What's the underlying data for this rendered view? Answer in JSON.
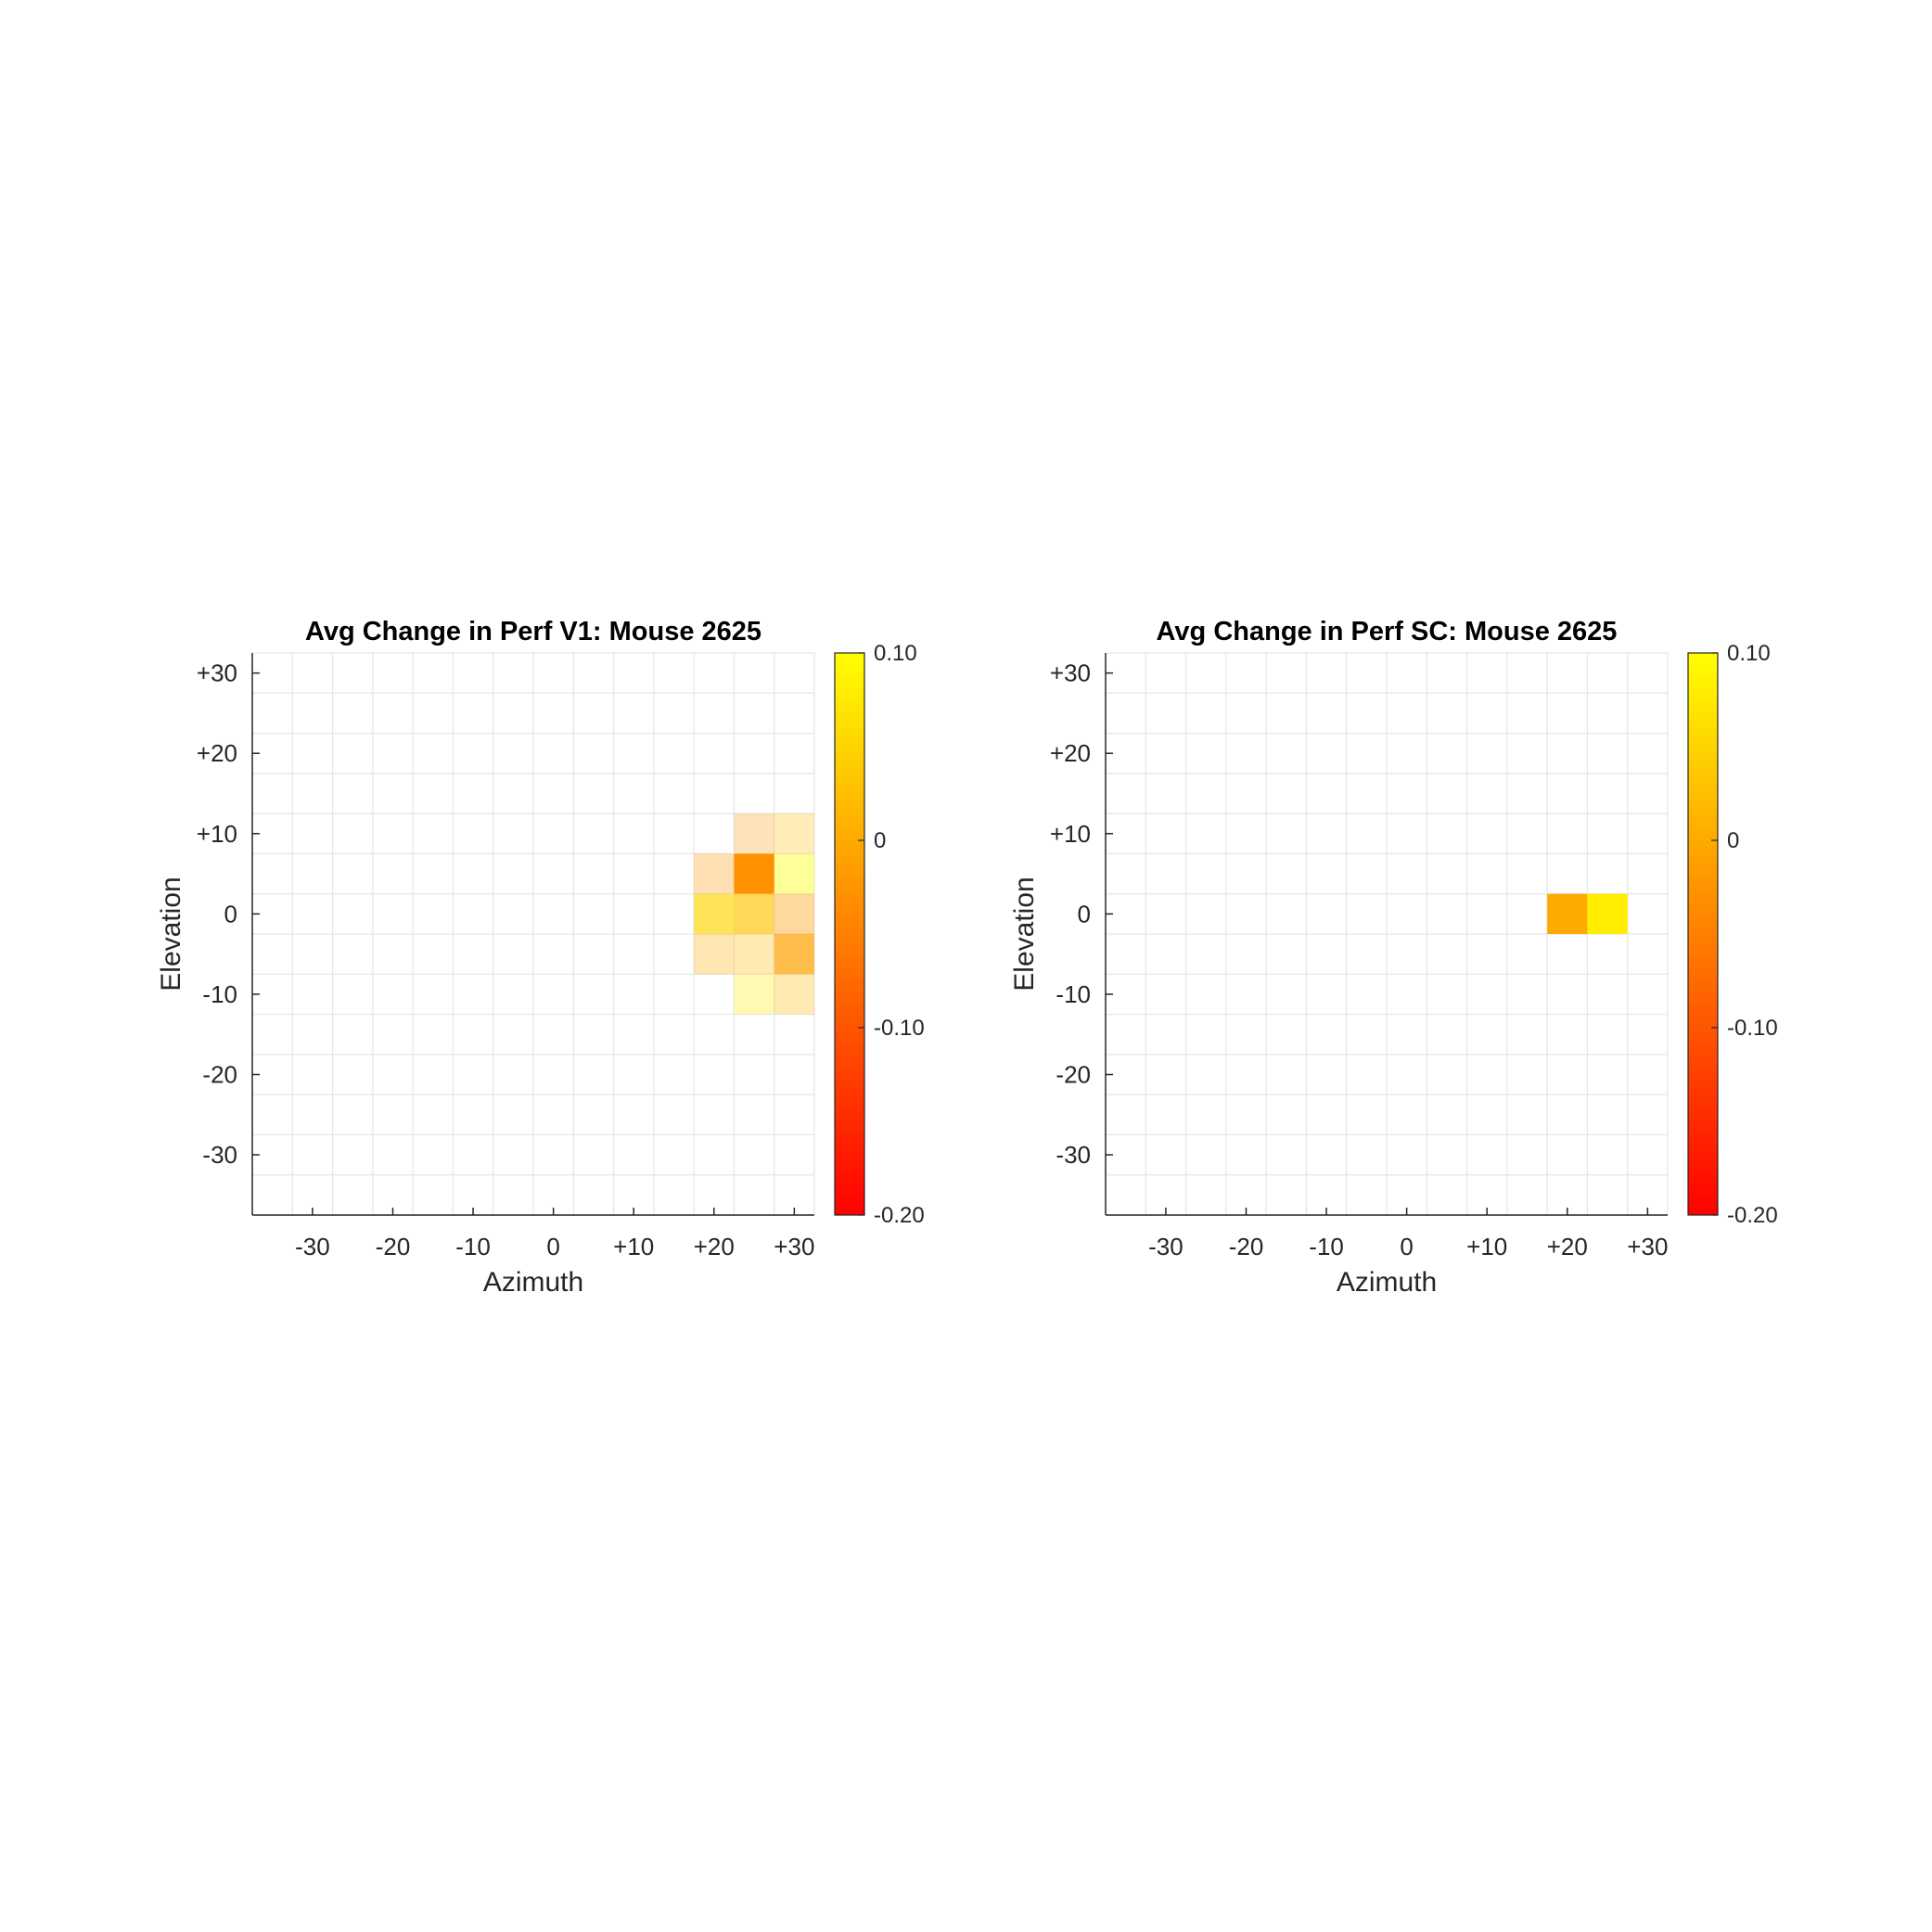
{
  "colors": {
    "colormap_low": "#ff0000",
    "colormap_high": "#ffff00",
    "grid": "#e6e6e6",
    "axis": "#262626"
  },
  "chart_data": [
    {
      "type": "heatmap",
      "title": "Avg Change in Perf V1: Mouse 2625",
      "xlabel": "Azimuth",
      "ylabel": "Elevation",
      "x_centers": [
        -35,
        -30,
        -25,
        -20,
        -15,
        -10,
        -5,
        0,
        5,
        10,
        15,
        20,
        25,
        30
      ],
      "y_centers": [
        30,
        25,
        20,
        15,
        10,
        5,
        0,
        -5,
        -10,
        -15,
        -20,
        -25,
        -30,
        -35
      ],
      "x_ticks": [
        -30,
        -20,
        -10,
        0,
        10,
        20,
        30
      ],
      "x_tick_labels": [
        "-30",
        "-20",
        "-10",
        "0",
        "+10",
        "+20",
        "+30"
      ],
      "y_ticks": [
        30,
        20,
        10,
        0,
        -10,
        -20,
        -30
      ],
      "y_tick_labels": [
        "+30",
        "+20",
        "+10",
        "0",
        "-10",
        "-20",
        "-30"
      ],
      "xlim": [
        -37.5,
        32.5
      ],
      "ylim": [
        -37.5,
        32.5
      ],
      "grid": true,
      "colorbar": {
        "range": [
          -0.2,
          0.1
        ],
        "ticks": [
          0.1,
          0,
          -0.1,
          -0.2
        ],
        "tick_labels": [
          "0.10",
          "0",
          "-0.10",
          "-0.20"
        ]
      },
      "cells": [
        {
          "x": 25,
          "y": 10,
          "value": -0.02,
          "alpha": 0.28
        },
        {
          "x": 30,
          "y": 10,
          "value": 0.02,
          "alpha": 0.28
        },
        {
          "x": 20,
          "y": 5,
          "value": -0.02,
          "alpha": 0.3
        },
        {
          "x": 25,
          "y": 5,
          "value": -0.03,
          "alpha": 1.0
        },
        {
          "x": 30,
          "y": 5,
          "value": 0.1,
          "alpha": 0.4
        },
        {
          "x": 20,
          "y": 0,
          "value": 0.05,
          "alpha": 0.65
        },
        {
          "x": 25,
          "y": 0,
          "value": 0.03,
          "alpha": 0.65
        },
        {
          "x": 30,
          "y": 0,
          "value": -0.02,
          "alpha": 0.38
        },
        {
          "x": 20,
          "y": -5,
          "value": 0.0,
          "alpha": 0.3
        },
        {
          "x": 25,
          "y": -5,
          "value": 0.02,
          "alpha": 0.3
        },
        {
          "x": 30,
          "y": -5,
          "value": -0.01,
          "alpha": 0.7
        },
        {
          "x": 25,
          "y": -10,
          "value": 0.08,
          "alpha": 0.3
        },
        {
          "x": 30,
          "y": -10,
          "value": 0.02,
          "alpha": 0.3
        }
      ]
    },
    {
      "type": "heatmap",
      "title": "Avg Change in Perf SC: Mouse 2625",
      "xlabel": "Azimuth",
      "ylabel": "Elevation",
      "x_centers": [
        -35,
        -30,
        -25,
        -20,
        -15,
        -10,
        -5,
        0,
        5,
        10,
        15,
        20,
        25,
        30
      ],
      "y_centers": [
        30,
        25,
        20,
        15,
        10,
        5,
        0,
        -5,
        -10,
        -15,
        -20,
        -25,
        -30,
        -35
      ],
      "x_ticks": [
        -30,
        -20,
        -10,
        0,
        10,
        20,
        30
      ],
      "x_tick_labels": [
        "-30",
        "-20",
        "-10",
        "0",
        "+10",
        "+20",
        "+30"
      ],
      "y_ticks": [
        30,
        20,
        10,
        0,
        -10,
        -20,
        -30
      ],
      "y_tick_labels": [
        "+30",
        "+20",
        "+10",
        "0",
        "-10",
        "-20",
        "-30"
      ],
      "xlim": [
        -37.5,
        32.5
      ],
      "ylim": [
        -37.5,
        32.5
      ],
      "grid": true,
      "colorbar": {
        "range": [
          -0.2,
          0.1
        ],
        "ticks": [
          0.1,
          0,
          -0.1,
          -0.2
        ],
        "tick_labels": [
          "0.10",
          "0",
          "-0.10",
          "-0.20"
        ]
      },
      "cells": [
        {
          "x": 20,
          "y": 0,
          "value": 0.0,
          "alpha": 1.0
        },
        {
          "x": 25,
          "y": 0,
          "value": 0.08,
          "alpha": 1.0
        }
      ]
    }
  ]
}
